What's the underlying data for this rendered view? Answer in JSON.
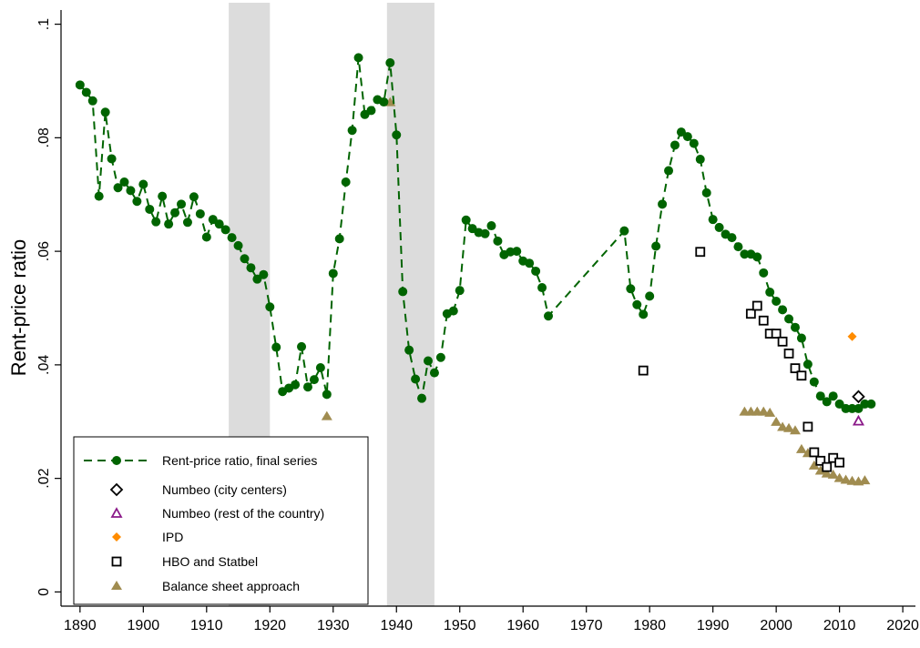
{
  "chart_data": {
    "type": "scatter",
    "title": "",
    "xlabel": "",
    "ylabel": "Rent-price ratio",
    "xlim": [
      1887,
      2022
    ],
    "ylim": [
      -0.0025,
      0.1025
    ],
    "x_ticks": [
      1890,
      1900,
      1910,
      1920,
      1930,
      1940,
      1950,
      1960,
      1970,
      1980,
      1990,
      2000,
      2010,
      2020
    ],
    "x_tick_labels": [
      "1890",
      "1900",
      "1910",
      "1920",
      "1930",
      "1940",
      "1950",
      "1960",
      "1970",
      "1980",
      "1990",
      "2000",
      "2010",
      "2020"
    ],
    "y_ticks": [
      0,
      0.02,
      0.04,
      0.06,
      0.08,
      0.1
    ],
    "y_tick_labels": [
      "0",
      ".02",
      ".04",
      ".06",
      ".08",
      ".1"
    ],
    "grid": false,
    "legend_position": "bottom-left",
    "shaded_periods": [
      [
        1913.5,
        1920
      ],
      [
        1938.5,
        1946
      ]
    ],
    "series": [
      {
        "name": "Rent-price ratio, final series",
        "marker": "circle",
        "line": "dashed",
        "color": "#006400",
        "points": [
          [
            1890,
            0.0893
          ],
          [
            1891,
            0.088
          ],
          [
            1892,
            0.0865
          ],
          [
            1893,
            0.0697
          ],
          [
            1894,
            0.0845
          ],
          [
            1895,
            0.0763
          ],
          [
            1896,
            0.0712
          ],
          [
            1897,
            0.0722
          ],
          [
            1898,
            0.0707
          ],
          [
            1899,
            0.0688
          ],
          [
            1900,
            0.0718
          ],
          [
            1901,
            0.0674
          ],
          [
            1902,
            0.0652
          ],
          [
            1903,
            0.0697
          ],
          [
            1904,
            0.0648
          ],
          [
            1905,
            0.0668
          ],
          [
            1906,
            0.0683
          ],
          [
            1907,
            0.0651
          ],
          [
            1908,
            0.0696
          ],
          [
            1909,
            0.0666
          ],
          [
            1910,
            0.0625
          ],
          [
            1911,
            0.0656
          ],
          [
            1912,
            0.0648
          ],
          [
            1913,
            0.0638
          ],
          [
            1914,
            0.0624
          ],
          [
            1915,
            0.061
          ],
          [
            1916,
            0.0587
          ],
          [
            1917,
            0.0571
          ],
          [
            1918,
            0.0551
          ],
          [
            1919,
            0.0559
          ],
          [
            1920,
            0.0502
          ],
          [
            1921,
            0.0431
          ],
          [
            1922,
            0.0353
          ],
          [
            1923,
            0.0359
          ],
          [
            1924,
            0.0365
          ],
          [
            1925,
            0.0432
          ],
          [
            1926,
            0.0361
          ],
          [
            1927,
            0.0374
          ],
          [
            1928,
            0.0395
          ],
          [
            1929,
            0.0348
          ],
          [
            1930,
            0.0561
          ],
          [
            1931,
            0.0622
          ],
          [
            1932,
            0.0722
          ],
          [
            1933,
            0.0813
          ],
          [
            1934,
            0.0941
          ],
          [
            1935,
            0.0841
          ],
          [
            1936,
            0.0848
          ],
          [
            1937,
            0.0867
          ],
          [
            1938,
            0.0863
          ],
          [
            1939,
            0.0932
          ],
          [
            1940,
            0.0805
          ],
          [
            1941,
            0.0529
          ],
          [
            1942,
            0.0426
          ],
          [
            1943,
            0.0375
          ],
          [
            1944,
            0.0341
          ],
          [
            1945,
            0.0407
          ],
          [
            1946,
            0.0386
          ],
          [
            1947,
            0.0413
          ],
          [
            1948,
            0.049
          ],
          [
            1949,
            0.0495
          ],
          [
            1950,
            0.0531
          ],
          [
            1951,
            0.0655
          ],
          [
            1952,
            0.064
          ],
          [
            1953,
            0.0633
          ],
          [
            1954,
            0.0631
          ],
          [
            1955,
            0.0645
          ],
          [
            1956,
            0.0618
          ],
          [
            1957,
            0.0594
          ],
          [
            1958,
            0.0599
          ],
          [
            1959,
            0.06
          ],
          [
            1960,
            0.0583
          ],
          [
            1961,
            0.0579
          ],
          [
            1962,
            0.0565
          ],
          [
            1963,
            0.0536
          ],
          [
            1964,
            0.0486
          ],
          [
            1976,
            0.0636
          ],
          [
            1977,
            0.0534
          ],
          [
            1978,
            0.0506
          ],
          [
            1979,
            0.0489
          ],
          [
            1980,
            0.0521
          ],
          [
            1981,
            0.0609
          ],
          [
            1982,
            0.0683
          ],
          [
            1983,
            0.0742
          ],
          [
            1984,
            0.0787
          ],
          [
            1985,
            0.081
          ],
          [
            1986,
            0.0802
          ],
          [
            1987,
            0.079
          ],
          [
            1988,
            0.0762
          ],
          [
            1989,
            0.0703
          ],
          [
            1990,
            0.0656
          ],
          [
            1991,
            0.0642
          ],
          [
            1992,
            0.063
          ],
          [
            1993,
            0.0624
          ],
          [
            1994,
            0.0608
          ],
          [
            1995,
            0.0595
          ],
          [
            1996,
            0.0595
          ],
          [
            1997,
            0.059
          ],
          [
            1998,
            0.0562
          ],
          [
            1999,
            0.0528
          ],
          [
            2000,
            0.0512
          ],
          [
            2001,
            0.0497
          ],
          [
            2002,
            0.0481
          ],
          [
            2003,
            0.0466
          ],
          [
            2004,
            0.0447
          ],
          [
            2005,
            0.0401
          ],
          [
            2006,
            0.037
          ],
          [
            2007,
            0.0345
          ],
          [
            2008,
            0.0335
          ],
          [
            2009,
            0.0345
          ],
          [
            2010,
            0.0331
          ],
          [
            2011,
            0.0323
          ],
          [
            2012,
            0.0323
          ],
          [
            2013,
            0.0323
          ],
          [
            2014,
            0.0331
          ],
          [
            2015,
            0.0331
          ]
        ]
      },
      {
        "name": "Numbeo (city centers)",
        "marker": "diamond-hollow",
        "color": "#000000",
        "points": [
          [
            2013,
            0.0344
          ]
        ]
      },
      {
        "name": "Numbeo (rest of the country)",
        "marker": "triangle-hollow",
        "color": "#8B1A89",
        "points": [
          [
            2013,
            0.0301
          ]
        ]
      },
      {
        "name": "IPD",
        "marker": "diamond-filled",
        "color": "#FF8C00",
        "points": [
          [
            2012,
            0.045
          ]
        ]
      },
      {
        "name": "HBO and Statbel",
        "marker": "square-hollow",
        "color": "#000000",
        "points": [
          [
            1979,
            0.039
          ],
          [
            1988,
            0.0599
          ],
          [
            1996,
            0.049
          ],
          [
            1997,
            0.0504
          ],
          [
            1998,
            0.0478
          ],
          [
            1999,
            0.0455
          ],
          [
            2000,
            0.0455
          ],
          [
            2001,
            0.0441
          ],
          [
            2002,
            0.042
          ],
          [
            2003,
            0.0394
          ],
          [
            2004,
            0.0381
          ],
          [
            2005,
            0.0291
          ],
          [
            2006,
            0.0246
          ],
          [
            2007,
            0.0231
          ],
          [
            2008,
            0.022
          ],
          [
            2009,
            0.0236
          ],
          [
            2010,
            0.0228
          ]
        ]
      },
      {
        "name": "Balance sheet approach",
        "marker": "triangle-filled",
        "color": "#A08C50",
        "points": [
          [
            1929,
            0.0309
          ],
          [
            1939,
            0.0862
          ],
          [
            1995,
            0.0317
          ],
          [
            1996,
            0.0317
          ],
          [
            1997,
            0.0317
          ],
          [
            1998,
            0.0317
          ],
          [
            1999,
            0.0315
          ],
          [
            2000,
            0.0299
          ],
          [
            2001,
            0.029
          ],
          [
            2002,
            0.0288
          ],
          [
            2003,
            0.0284
          ],
          [
            2004,
            0.0251
          ],
          [
            2005,
            0.0244
          ],
          [
            2006,
            0.0222
          ],
          [
            2007,
            0.0213
          ],
          [
            2008,
            0.0208
          ],
          [
            2009,
            0.0206
          ],
          [
            2010,
            0.02
          ],
          [
            2011,
            0.0197
          ],
          [
            2012,
            0.0195
          ],
          [
            2013,
            0.0194
          ],
          [
            2014,
            0.0196
          ]
        ]
      }
    ]
  }
}
